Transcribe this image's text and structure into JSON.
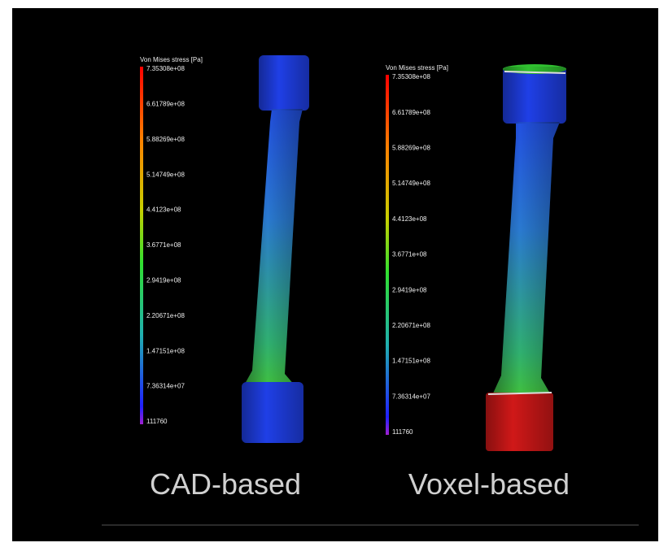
{
  "panels": [
    {
      "legend_title": "Von Mises stress [Pa]",
      "ticks": [
        "7.35308e+08",
        "6.61789e+08",
        "5.88269e+08",
        "5.14749e+08",
        "4.4123e+08",
        "3.6771e+08",
        "2.9419e+08",
        "2.20671e+08",
        "1.47151e+08",
        "7.36314e+07",
        "111760"
      ],
      "caption": "CAD-based"
    },
    {
      "legend_title": "Von Mises stress [Pa]",
      "ticks": [
        "7.35308e+08",
        "6.61789e+08",
        "5.88269e+08",
        "5.14749e+08",
        "4.4123e+08",
        "3.6771e+08",
        "2.9419e+08",
        "2.20671e+08",
        "1.47151e+08",
        "7.36314e+07",
        "111760"
      ],
      "caption": "Voxel-based"
    }
  ]
}
